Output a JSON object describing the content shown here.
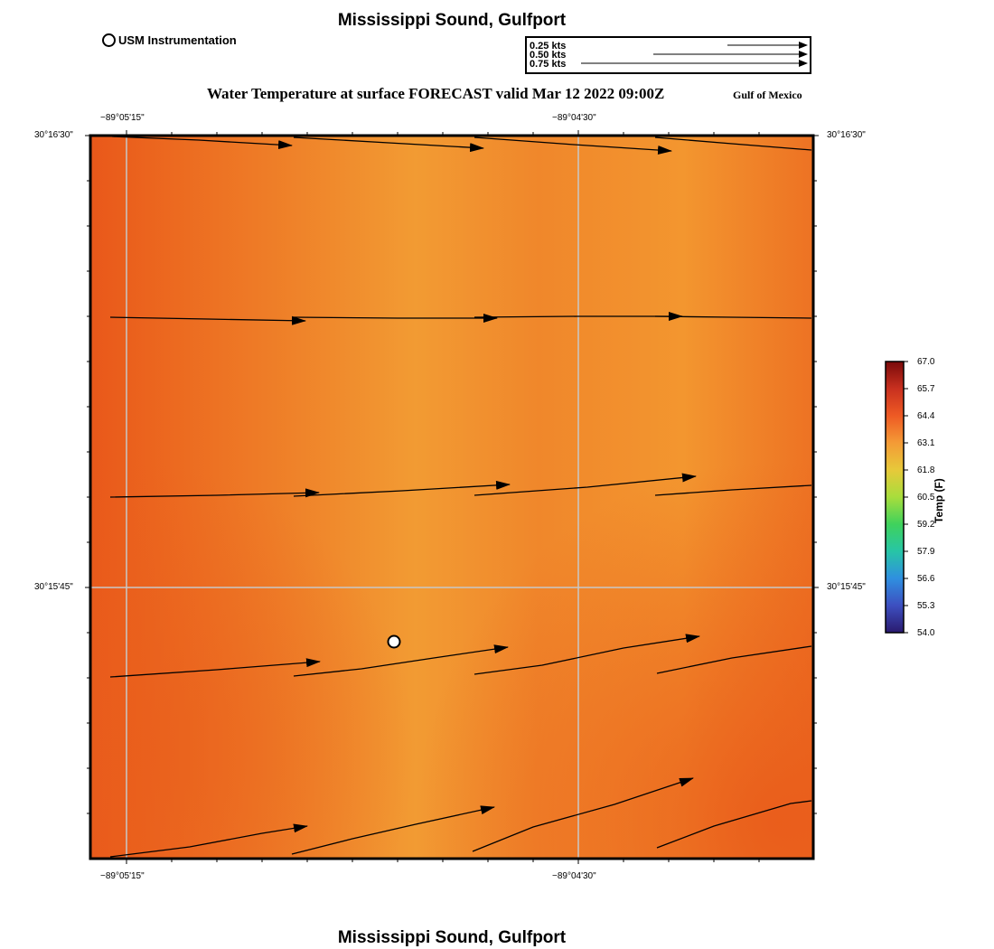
{
  "header": {
    "title": "Mississippi Sound, Gulfport",
    "footer_title": "Mississippi Sound, Gulfport",
    "usm_legend_label": "USM Instrumentation"
  },
  "vector_legend": {
    "items": [
      "0.25 kts",
      "0.50 kts",
      "0.75 kts"
    ]
  },
  "map": {
    "title": "Water Temperature at surface FORECAST valid Mar 12 2022 09:00Z",
    "region": "Gulf of Mexico",
    "top_lon_labels": [
      "−89°05'15\"",
      "−89°04'30\""
    ],
    "bottom_lon_labels": [
      "−89°05'15\"",
      "−89°04'30\""
    ],
    "left_lat_labels": [
      "30°16'30\"",
      "30°15'45\""
    ],
    "right_lat_labels": [
      "30°16'30\"",
      "30°15'45\""
    ],
    "station_marker": "USM Instrumentation",
    "colors": {
      "warm": "#f09a34",
      "hot": "#e95a1a"
    }
  },
  "colorbar": {
    "title": "Temp (F)",
    "ticks": [
      "67.0",
      "65.7",
      "64.4",
      "63.1",
      "61.8",
      "60.5",
      "59.2",
      "57.9",
      "56.6",
      "55.3",
      "54.0"
    ],
    "stops": [
      "#7a0a0a",
      "#c8301f",
      "#ee5a24",
      "#f49b36",
      "#e7c93a",
      "#a8dd3c",
      "#3fd25c",
      "#27c5a6",
      "#2f8fe0",
      "#3d4fc0",
      "#2a1a6e"
    ]
  }
}
